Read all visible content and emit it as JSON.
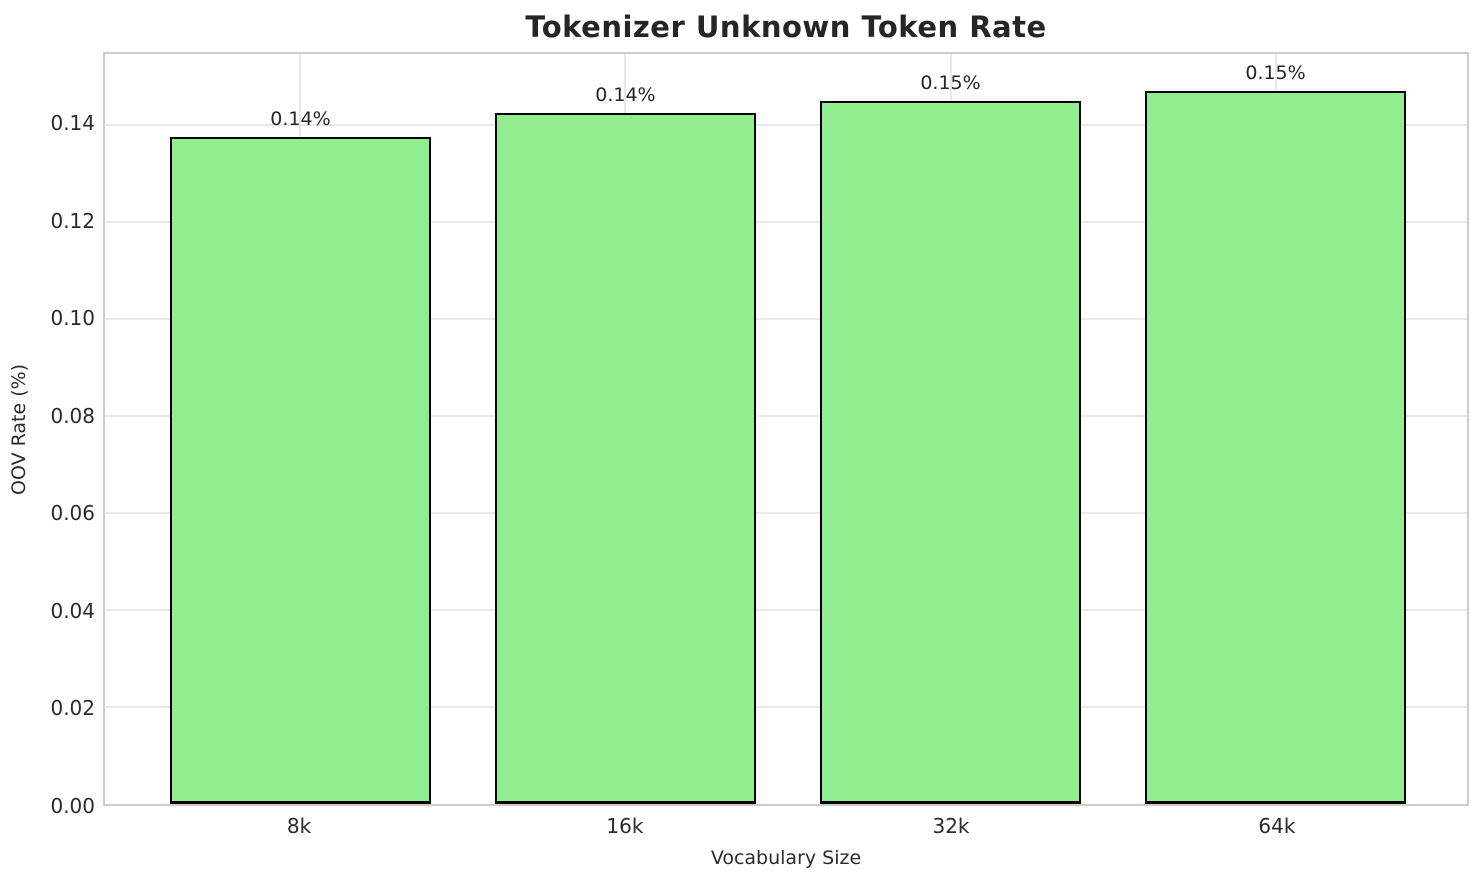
{
  "title": "Tokenizer Unknown Token Rate",
  "chart_data": {
    "type": "bar",
    "title": "Tokenizer Unknown Token Rate",
    "xlabel": "Vocabulary Size",
    "ylabel": "OOV Rate (%)",
    "categories": [
      "8k",
      "16k",
      "32k",
      "64k"
    ],
    "values": [
      0.1375,
      0.1425,
      0.145,
      0.147
    ],
    "bar_labels": [
      "0.14%",
      "0.14%",
      "0.15%",
      "0.15%"
    ],
    "yticks": [
      "0.00",
      "0.02",
      "0.04",
      "0.06",
      "0.08",
      "0.10",
      "0.12",
      "0.14"
    ],
    "ylim": [
      0,
      0.1546
    ],
    "grid": true,
    "legend": "none",
    "bar_color": "#90EE90",
    "bar_edge_color": "#000000",
    "background_color": "#ffffff",
    "spine_color": "#cccccc",
    "gridline_color": "#e9e9e9"
  }
}
